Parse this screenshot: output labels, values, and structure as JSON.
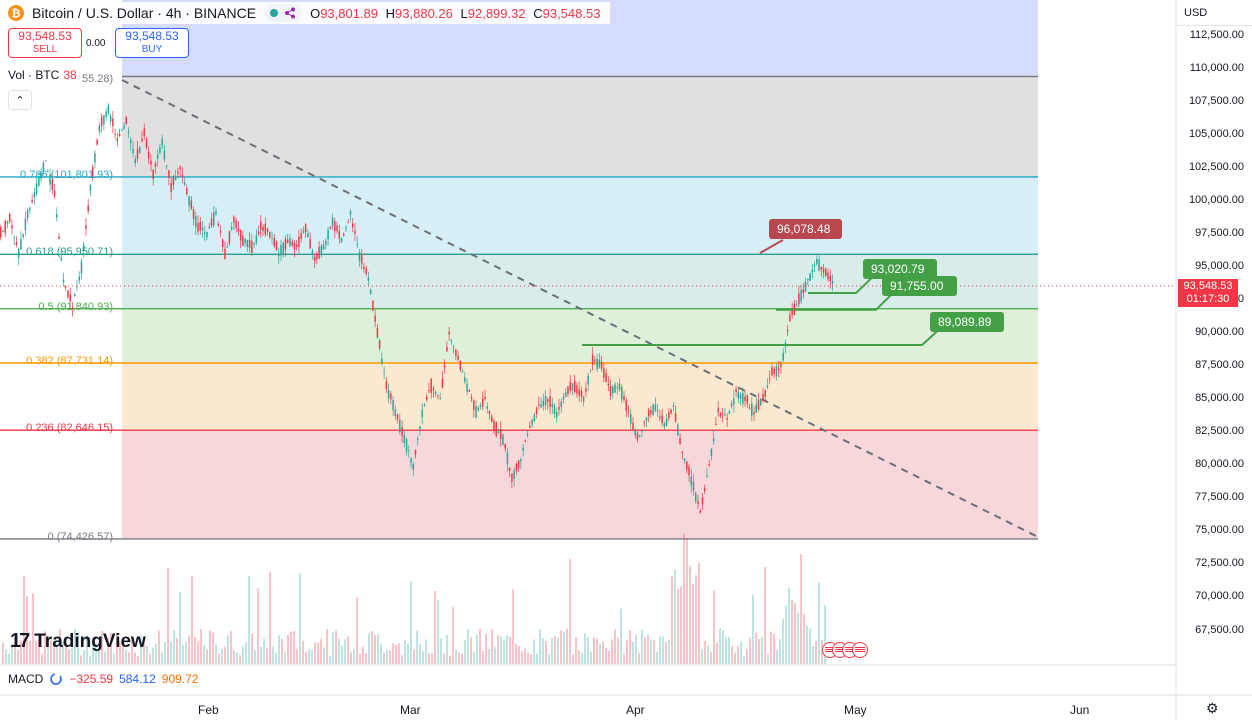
{
  "header": {
    "coin_symbol": "₿",
    "title": "Bitcoin / U.S. Dollar · 4h · BINANCE",
    "ohlc": {
      "o_label": "O",
      "o": "93,801.89",
      "h_label": "H",
      "h": "93,880.26",
      "l_label": "L",
      "l": "92,899.32",
      "c_label": "C",
      "c": "93,548.53"
    }
  },
  "trade": {
    "sell_price": "93,548.53",
    "sell_label": "SELL",
    "spread": "0.00",
    "buy_price": "93,548.53",
    "buy_label": "BUY"
  },
  "volume_legend": {
    "label": "Vol · BTC",
    "value": "38",
    "partial_number": "55.28)"
  },
  "collapse_icon": "chevron-up-icon",
  "currency": "USD",
  "price_axis": [
    "112,500.00",
    "110,000.00",
    "107,500.00",
    "105,000.00",
    "102,500.00",
    "100,000.00",
    "97,500.00",
    "95,000.00",
    "92,500.00",
    "90,000.00",
    "87,500.00",
    "85,000.00",
    "82,500.00",
    "80,000.00",
    "77,500.00",
    "75,000.00",
    "72,500.00",
    "70,000.00",
    "67,500.00"
  ],
  "current_price": {
    "price": "93,548.53",
    "countdown": "01:17:30"
  },
  "time_axis": [
    "Feb",
    "Mar",
    "Apr",
    "May",
    "Jun"
  ],
  "watermark": "TradingView",
  "macd": {
    "label": "MACD",
    "v1": "−325.59",
    "v2": "584.12",
    "v3": "909.72"
  },
  "colors": {
    "up": "#26a69a",
    "down": "#f23645",
    "accent": "#2962ff"
  },
  "chart_data": {
    "type": "line",
    "title": "Bitcoin / U.S. Dollar · 4h · BINANCE",
    "ylim": [
      65500,
      113500
    ],
    "x_ticks": [
      "Feb",
      "Mar",
      "Apr",
      "May",
      "Jun"
    ],
    "fib_levels": [
      {
        "ratio": "1",
        "price": 109400,
        "color": "#787b86",
        "fill": "#e0e0e0"
      },
      {
        "ratio": "0.786",
        "price": 101801.93,
        "label": "0.786 (101,801.93)",
        "color": "#26a5c4",
        "fill": "#d6eef5"
      },
      {
        "ratio": "0.618",
        "price": 95950.71,
        "label": "0.618 (95,950.71)",
        "color": "#2a9d8f",
        "fill": "#d8ede9"
      },
      {
        "ratio": "0.5",
        "price": 91840.93,
        "label": "0.5 (91,840.93)",
        "color": "#4caf50",
        "fill": "#dff0da"
      },
      {
        "ratio": "0.382",
        "price": 87731.14,
        "label": "0.382 (87,731.14)",
        "color": "#ff9800",
        "fill": "#fbe8d1"
      },
      {
        "ratio": "0.236",
        "price": 82646.15,
        "label": "0.236 (82,646.15)",
        "color": "#f23645",
        "fill": "#f6d7da"
      },
      {
        "ratio": "0",
        "price": 74426.57,
        "label": "0 (74,426.57)",
        "color": "#787b86",
        "fill": null
      }
    ],
    "annotations": [
      {
        "text": "96,078.48",
        "price": 96078.48,
        "kind": "resistance"
      },
      {
        "text": "93,020.79",
        "price": 93020.79,
        "kind": "support"
      },
      {
        "text": "91,755.00",
        "price": 91755.0,
        "kind": "support"
      },
      {
        "text": "89,089.89",
        "price": 89089.89,
        "kind": "support"
      }
    ],
    "series": [
      {
        "values": [
          97500,
          98500,
          96000,
          99000,
          101000,
          103000,
          100500,
          94000,
          92000,
          95000,
          101000,
          105500,
          107000,
          104500,
          106000,
          103000,
          105000,
          102000,
          104500,
          101000,
          102500,
          100000,
          98000,
          97500,
          99000,
          96000,
          98500,
          97000,
          96500,
          98000,
          97500,
          96000,
          97000,
          96500,
          98000,
          95500,
          96500,
          98500,
          97000,
          99000,
          96000,
          94000,
          90000,
          86000,
          84000,
          82000,
          80000,
          84000,
          86000,
          85000,
          90000,
          88000,
          86000,
          84000,
          85000,
          83000,
          82000,
          79000,
          80500,
          83000,
          84500,
          85000,
          84000,
          85500,
          86000,
          85000,
          88000,
          87500,
          85500,
          86000,
          84000,
          82000,
          83500,
          84500,
          83000,
          84500,
          81000,
          79000,
          76500,
          80000,
          84000,
          83500,
          85500,
          85000,
          84000,
          85000,
          87000,
          87500,
          91000,
          92500,
          94000,
          95500,
          94500,
          93548
        ]
      }
    ]
  }
}
